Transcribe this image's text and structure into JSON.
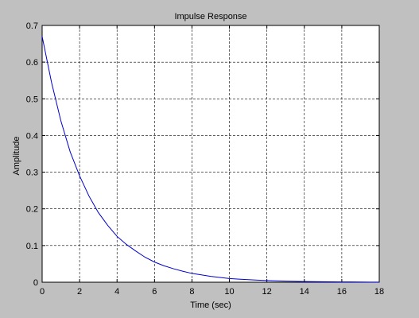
{
  "chart_data": {
    "type": "line",
    "title": "Impulse Response",
    "xlabel": "Time (sec)",
    "ylabel": "Amplitude",
    "xlim": [
      0,
      18
    ],
    "ylim": [
      0,
      0.7
    ],
    "xticks": [
      0,
      2,
      4,
      6,
      8,
      10,
      12,
      14,
      16,
      18
    ],
    "yticks": [
      0,
      0.1,
      0.2,
      0.3,
      0.4,
      0.5,
      0.6,
      0.7
    ],
    "xtick_labels": [
      "0",
      "2",
      "4",
      "6",
      "8",
      "10",
      "12",
      "14",
      "16",
      "18"
    ],
    "ytick_labels": [
      "0",
      "0.1",
      "0.2",
      "0.3",
      "0.4",
      "0.5",
      "0.6",
      "0.7"
    ],
    "grid": true,
    "series": [
      {
        "color": "#0000cc",
        "x": [
          0,
          0.5,
          1,
          1.5,
          2,
          2.5,
          3,
          3.5,
          4,
          4.5,
          5,
          5.5,
          6,
          6.5,
          7,
          7.5,
          8,
          8.5,
          9,
          9.5,
          10,
          10.5,
          11,
          11.5,
          12,
          12.5,
          13,
          13.5,
          14,
          14.5,
          15,
          15.5,
          16,
          16.5,
          17,
          17.5,
          18
        ],
        "y": [
          0.67,
          0.545,
          0.44,
          0.355,
          0.29,
          0.235,
          0.19,
          0.155,
          0.125,
          0.103,
          0.085,
          0.068,
          0.055,
          0.045,
          0.037,
          0.03,
          0.024,
          0.02,
          0.016,
          0.013,
          0.01,
          0.0085,
          0.007,
          0.0056,
          0.0045,
          0.0037,
          0.003,
          0.0024,
          0.002,
          0.0016,
          0.0013,
          0.001,
          0.0008,
          0.0007,
          0.0005,
          0.0004,
          0.0003
        ]
      }
    ]
  }
}
